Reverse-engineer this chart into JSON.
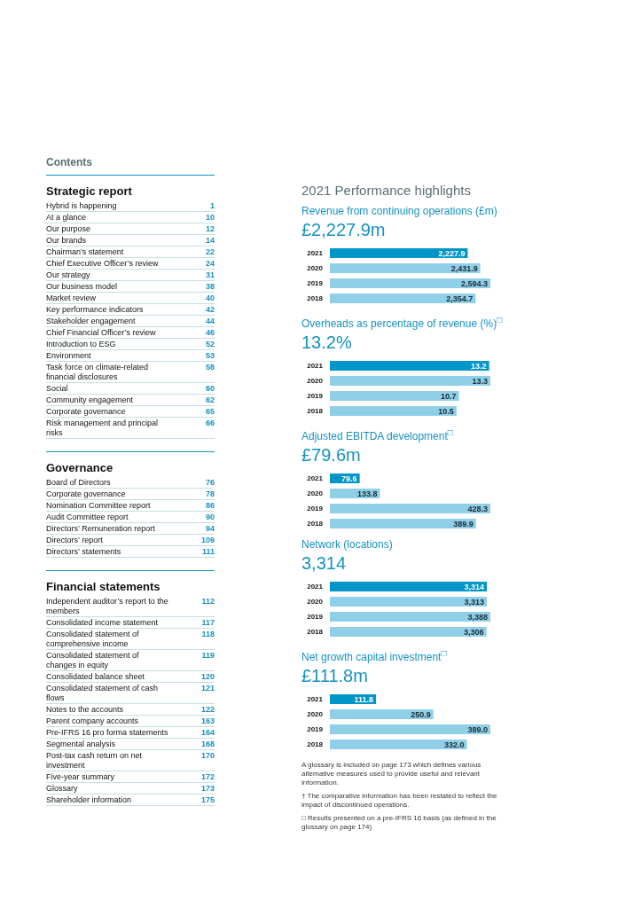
{
  "chart_data": [
    {
      "type": "other",
      "annotations": [
        "Contents"
      ],
      "title": "Strategic report",
      "data_labels": true,
      "categories": [
        "Hybrid is happening",
        "At a glance",
        "Our purpose",
        "Our brands",
        "Chairman’s statement",
        "Chief Executive Officer’s review",
        "Our strategy",
        "Our business model",
        "Market review",
        "Key performance indicators",
        "Stakeholder engagement",
        "Chief Financial Officer’s review",
        "Introduction to ESG",
        "Environment",
        "Task force on climate-related financial disclosures",
        "Social",
        "Community engagement",
        "Corporate governance",
        "Risk management and principal risks"
      ],
      "values": [
        1,
        10,
        12,
        14,
        22,
        24,
        31,
        38,
        40,
        42,
        44,
        46,
        52,
        53,
        58,
        60,
        62,
        65,
        66
      ]
    },
    {
      "type": "other",
      "title": "Governance",
      "data_labels": true,
      "categories": [
        "Board of Directors",
        "Corporate governance",
        "Nomination Committee report",
        "Audit Committee report",
        "Directors’ Remuneration report",
        "Directors’ report",
        "Directors’ statements"
      ],
      "values": [
        76,
        78,
        86,
        90,
        94,
        109,
        111
      ]
    },
    {
      "type": "other",
      "title": "Financial statements",
      "data_labels": true,
      "categories": [
        "Independent auditor’s report to the members",
        "Consolidated income statement",
        "Consolidated statement of comprehensive income",
        "Consolidated statement of changes in equity",
        "Consolidated balance sheet",
        "Consolidated statement of cash flows",
        "Notes to the accounts",
        "Parent company accounts",
        "Pre-IFRS 16 pro forma statements",
        "Segmental analysis",
        "Post-tax cash return on net investment",
        "Five-year summary",
        "Glossary",
        "Shareholder information"
      ],
      "values": [
        112,
        117,
        118,
        119,
        120,
        121,
        122,
        163,
        164,
        168,
        170,
        172,
        173,
        175
      ]
    },
    {
      "type": "bar",
      "orientation": "horizontal",
      "annotations": [
        "2021 Performance highlights"
      ],
      "title": "Revenue from continuing operations (£m)",
      "subtitle": "£2,227.9m",
      "categories": [
        "2021",
        "2020",
        "2019",
        "2018"
      ],
      "values": [
        2227.9,
        2431.9,
        2594.3,
        2354.7
      ],
      "value_labels": [
        "2,227.9",
        "2,431.9",
        "2,594.3",
        "2,354.7"
      ],
      "colors": [
        "#0096c8",
        "#8fd0e8",
        "#8fd0e8",
        "#8fd0e8"
      ]
    },
    {
      "type": "bar",
      "orientation": "horizontal",
      "title": "Overheads as percentage of revenue (%)$^{□}$",
      "subtitle": "13.2%",
      "categories": [
        "2021",
        "2020",
        "2019",
        "2018"
      ],
      "values": [
        13.2,
        13.3,
        10.7,
        10.5
      ],
      "value_labels": [
        "13.2",
        "13.3",
        "10.7",
        "10.5"
      ],
      "colors": [
        "#0096c8",
        "#8fd0e8",
        "#8fd0e8",
        "#8fd0e8"
      ]
    },
    {
      "type": "bar",
      "orientation": "horizontal",
      "title": "Adjusted EBITDA development$^{□}$",
      "subtitle": "£79.6m",
      "categories": [
        "2021",
        "2020",
        "2019",
        "2018"
      ],
      "values": [
        79.6,
        133.8,
        428.3,
        389.9
      ],
      "value_labels": [
        "79.6",
        "133.8",
        "428.3",
        "389.9"
      ],
      "colors": [
        "#0096c8",
        "#8fd0e8",
        "#8fd0e8",
        "#8fd0e8"
      ]
    },
    {
      "type": "bar",
      "orientation": "horizontal",
      "title": "Network (locations)",
      "subtitle": "3,314",
      "categories": [
        "2021",
        "2020",
        "2019",
        "2018"
      ],
      "values": [
        3314,
        3313,
        3388,
        3306
      ],
      "value_labels": [
        "3,314",
        "3,313",
        "3,388",
        "3,306"
      ],
      "colors": [
        "#0096c8",
        "#8fd0e8",
        "#8fd0e8",
        "#8fd0e8"
      ]
    },
    {
      "type": "bar",
      "orientation": "horizontal",
      "title": "Net growth capital investment$^{□}$",
      "subtitle": "£111.8m",
      "categories": [
        "2021",
        "2020",
        "2019",
        "2018"
      ],
      "values": [
        111.8,
        250.9,
        389.0,
        332.0
      ],
      "value_labels": [
        "111.8",
        "250.9",
        "389.0",
        "332.0"
      ],
      "colors": [
        "#0096c8",
        "#8fd0e8",
        "#8fd0e8",
        "#8fd0e8"
      ]
    },
    {
      "type": "other",
      "annotations": [
        "A glossary is included on page 173 which defines various alternative measures used to provide useful and relevant information.",
        "† The comparative information has been restated to reflect the impact of discontinued operations.",
        "□ Results presented on a pre-IFRS 16 basis (as defined in the glossary on page 174)"
      ]
    }
  ]
}
